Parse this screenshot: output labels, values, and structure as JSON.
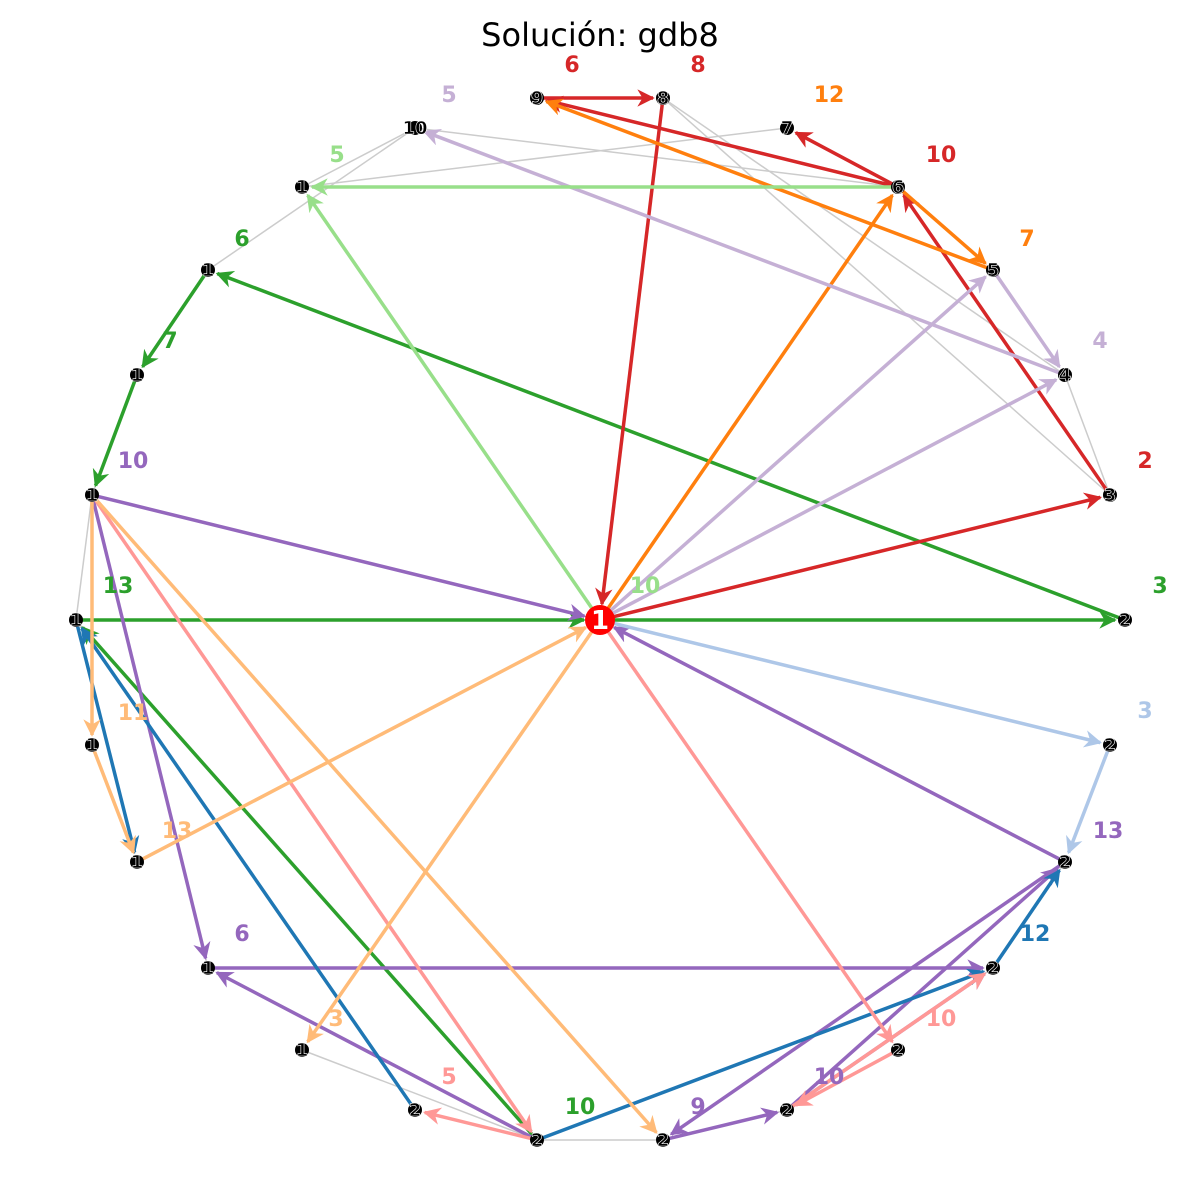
{
  "title": "Solución: gdb8",
  "colors": {
    "gray_edge": "#cccccc",
    "node_fill": "#000000",
    "depot_fill": "#ff0000",
    "routes": [
      "#2ca02c",
      "#d62728",
      "#ff7f0e",
      "#c5b0d5",
      "#9467bd",
      "#1f77b4",
      "#98df8a",
      "#ff9896",
      "#ffbb78",
      "#aec7e8"
    ]
  },
  "depot": {
    "label": "1"
  },
  "nodes": [
    {
      "id": "n2",
      "label": "2"
    },
    {
      "id": "n3",
      "label": "3"
    },
    {
      "id": "n4",
      "label": "4"
    },
    {
      "id": "n5",
      "label": "5"
    },
    {
      "id": "n6",
      "label": "6"
    },
    {
      "id": "n7",
      "label": "7"
    },
    {
      "id": "n8",
      "label": "8"
    },
    {
      "id": "n9",
      "label": "9"
    },
    {
      "id": "n10",
      "label": "10"
    },
    {
      "id": "n11",
      "label": "1"
    },
    {
      "id": "n12",
      "label": "1"
    },
    {
      "id": "n13",
      "label": "1"
    },
    {
      "id": "n14",
      "label": "1"
    },
    {
      "id": "n15",
      "label": "1"
    },
    {
      "id": "n16",
      "label": "1"
    },
    {
      "id": "n17",
      "label": "1"
    },
    {
      "id": "n18",
      "label": "1"
    },
    {
      "id": "n19",
      "label": "1"
    },
    {
      "id": "n20",
      "label": "2"
    },
    {
      "id": "n21",
      "label": "2"
    },
    {
      "id": "n22",
      "label": "2"
    },
    {
      "id": "n23",
      "label": "2"
    },
    {
      "id": "n24",
      "label": "2"
    },
    {
      "id": "n25",
      "label": "2"
    },
    {
      "id": "n26",
      "label": "2"
    },
    {
      "id": "n27",
      "label": "2"
    }
  ],
  "gray_edges": [
    [
      "n10",
      "n6"
    ],
    [
      "n10",
      "n12"
    ],
    [
      "n11",
      "n7"
    ],
    [
      "n11",
      "n10"
    ],
    [
      "n8",
      "n3"
    ],
    [
      "n8",
      "n4"
    ],
    [
      "n4",
      "n3"
    ],
    [
      "n13",
      "n14"
    ],
    [
      "n14",
      "n15"
    ],
    [
      "n14",
      "n18"
    ],
    [
      "n15",
      "n20"
    ],
    [
      "n19",
      "n21"
    ],
    [
      "n21",
      "n22"
    ],
    [
      "n22",
      "n23"
    ],
    [
      "n23",
      "n25"
    ],
    [
      "n25",
      "n26"
    ],
    [
      "n15",
      "n21"
    ]
  ],
  "route_edges": [
    {
      "from": "depot",
      "to": "n2",
      "c": 0
    },
    {
      "from": "n2",
      "to": "n12",
      "c": 0
    },
    {
      "from": "n12",
      "to": "n13",
      "c": 0
    },
    {
      "from": "n13",
      "to": "n14",
      "c": 0
    },
    {
      "from": "n15",
      "to": "depot",
      "c": 0
    },
    {
      "from": "n21",
      "to": "n15",
      "c": 0
    },
    {
      "from": "depot",
      "to": "n3",
      "c": 1
    },
    {
      "from": "n3",
      "to": "n6",
      "c": 1
    },
    {
      "from": "n6",
      "to": "n7",
      "c": 1
    },
    {
      "from": "n6",
      "to": "n9",
      "c": 1
    },
    {
      "from": "n9",
      "to": "n8",
      "c": 1
    },
    {
      "from": "n8",
      "to": "depot",
      "c": 1
    },
    {
      "from": "depot",
      "to": "n6",
      "c": 2
    },
    {
      "from": "n6",
      "to": "n5",
      "c": 2
    },
    {
      "from": "n5",
      "to": "n9",
      "c": 2
    },
    {
      "from": "depot",
      "to": "n5",
      "c": 3
    },
    {
      "from": "n5",
      "to": "n4",
      "c": 3
    },
    {
      "from": "depot",
      "to": "n4",
      "c": 3
    },
    {
      "from": "n4",
      "to": "n10",
      "c": 3
    },
    {
      "from": "n14",
      "to": "depot",
      "c": 4
    },
    {
      "from": "n14",
      "to": "n18",
      "c": 4
    },
    {
      "from": "n18",
      "to": "n25",
      "c": 4
    },
    {
      "from": "n26",
      "to": "n22",
      "c": 4
    },
    {
      "from": "n22",
      "to": "n23",
      "c": 4
    },
    {
      "from": "n23",
      "to": "n25",
      "c": 4
    },
    {
      "from": "n23",
      "to": "n26",
      "c": 4
    },
    {
      "from": "n26",
      "to": "depot",
      "c": 4
    },
    {
      "from": "n21",
      "to": "n18",
      "c": 4
    },
    {
      "from": "n21",
      "to": "n25",
      "c": 5
    },
    {
      "from": "n25",
      "to": "n26",
      "c": 5
    },
    {
      "from": "n15",
      "to": "n17",
      "c": 5
    },
    {
      "from": "n20",
      "to": "n15",
      "c": 5
    },
    {
      "from": "depot",
      "to": "n11",
      "c": 6
    },
    {
      "from": "n6",
      "to": "n11",
      "c": 6
    },
    {
      "from": "n14",
      "to": "n21",
      "c": 7
    },
    {
      "from": "n21",
      "to": "n20",
      "c": 7
    },
    {
      "from": "depot",
      "to": "n24",
      "c": 7
    },
    {
      "from": "n24",
      "to": "n23",
      "c": 7
    },
    {
      "from": "n23",
      "to": "n25",
      "c": 7
    },
    {
      "from": "depot",
      "to": "n19",
      "c": 8
    },
    {
      "from": "n14",
      "to": "n16",
      "c": 8
    },
    {
      "from": "n16",
      "to": "n17",
      "c": 8
    },
    {
      "from": "n17",
      "to": "depot",
      "c": 8
    },
    {
      "from": "n14",
      "to": "n22",
      "c": 8
    },
    {
      "from": "depot",
      "to": "n27",
      "c": 9
    },
    {
      "from": "n27",
      "to": "n26",
      "c": 9
    }
  ],
  "edge_labels": [
    {
      "text": "6",
      "c": 1
    },
    {
      "text": "8",
      "c": 1
    },
    {
      "text": "5",
      "c": 3
    },
    {
      "text": "12",
      "c": 2
    },
    {
      "text": "10",
      "c": 1
    },
    {
      "text": "7",
      "c": 2
    },
    {
      "text": "5",
      "c": 6
    },
    {
      "text": "6",
      "c": 0
    },
    {
      "text": "7",
      "c": 0
    },
    {
      "text": "4",
      "c": 3
    },
    {
      "text": "10",
      "c": 4
    },
    {
      "text": "2",
      "c": 1
    },
    {
      "text": "10",
      "c": 6
    },
    {
      "text": "3",
      "c": 0
    },
    {
      "text": "13",
      "c": 0
    },
    {
      "text": "3",
      "c": 9
    },
    {
      "text": "11",
      "c": 8
    },
    {
      "text": "13",
      "c": 8
    },
    {
      "text": "13",
      "c": 4
    },
    {
      "text": "6",
      "c": 4
    },
    {
      "text": "12",
      "c": 5
    },
    {
      "text": "3",
      "c": 8
    },
    {
      "text": "10",
      "c": 7
    },
    {
      "text": "5",
      "c": 7
    },
    {
      "text": "10",
      "c": 4
    },
    {
      "text": "10",
      "c": 0
    },
    {
      "text": "9",
      "c": 4
    }
  ]
}
